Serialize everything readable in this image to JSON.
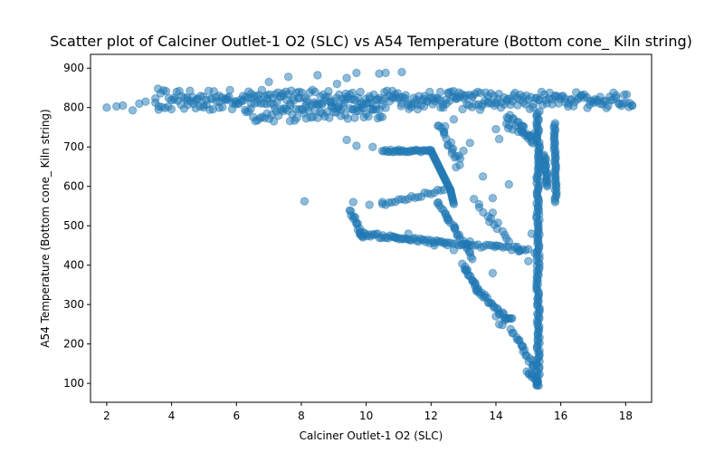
{
  "chart_data": {
    "type": "scatter",
    "title": "Scatter plot of Calciner Outlet-1 O2 (SLC) vs A54 Temperature (Bottom cone_ Kiln string)",
    "xlabel": "Calciner Outlet-1 O2 (SLC)",
    "ylabel": "A54 Temperature (Bottom cone_ Kiln string)",
    "xlim": [
      1.5,
      18.8
    ],
    "ylim": [
      52,
      935
    ],
    "xticks": [
      2,
      4,
      6,
      8,
      10,
      12,
      14,
      16,
      18
    ],
    "yticks": [
      100,
      200,
      300,
      400,
      500,
      600,
      700,
      800,
      900
    ],
    "grid": false,
    "legend": "none",
    "marker_color": "#1f77b4",
    "marker_alpha": 0.5,
    "segments": [
      {
        "from": [
          3.5,
          830
        ],
        "to": [
          18.2,
          820
        ],
        "count": 180,
        "spread": [
          0,
          18
        ]
      },
      {
        "from": [
          3.5,
          810
        ],
        "to": [
          18.2,
          815
        ],
        "count": 150,
        "spread": [
          0,
          18
        ]
      },
      {
        "from": [
          6.3,
          780
        ],
        "to": [
          10.5,
          790
        ],
        "count": 60,
        "spread": [
          0,
          18
        ]
      },
      {
        "from": [
          4.5,
          820
        ],
        "to": [
          14.0,
          815
        ],
        "count": 40,
        "spread": [
          0,
          22
        ]
      },
      {
        "from": [
          15.3,
          790
        ],
        "to": [
          15.3,
          95
        ],
        "count": 150,
        "spread": [
          0.05,
          0
        ]
      },
      {
        "from": [
          15.8,
          760
        ],
        "to": [
          15.85,
          560
        ],
        "count": 40,
        "spread": [
          0.03,
          0
        ]
      },
      {
        "from": [
          15.5,
          680
        ],
        "to": [
          15.6,
          600
        ],
        "count": 20,
        "spread": [
          0.03,
          0
        ]
      },
      {
        "from": [
          14.3,
          770
        ],
        "to": [
          15.2,
          720
        ],
        "count": 30,
        "spread": [
          0.1,
          15
        ]
      },
      {
        "from": [
          10.5,
          690
        ],
        "to": [
          12.0,
          690
        ],
        "count": 30,
        "spread": [
          0,
          3
        ]
      },
      {
        "from": [
          12.0,
          690
        ],
        "to": [
          12.6,
          590
        ],
        "count": 30,
        "spread": [
          0,
          0
        ]
      },
      {
        "from": [
          12.6,
          590
        ],
        "to": [
          12.7,
          555
        ],
        "count": 10,
        "spread": [
          0,
          0
        ]
      },
      {
        "from": [
          12.2,
          560
        ],
        "to": [
          13.3,
          420
        ],
        "count": 30,
        "spread": [
          0.05,
          5
        ]
      },
      {
        "from": [
          13.0,
          400
        ],
        "to": [
          13.5,
          330
        ],
        "count": 20,
        "spread": [
          0.05,
          5
        ]
      },
      {
        "from": [
          13.5,
          330
        ],
        "to": [
          14.3,
          265
        ],
        "count": 20,
        "spread": [
          0.05,
          5
        ]
      },
      {
        "from": [
          14.3,
          265
        ],
        "to": [
          14.5,
          265
        ],
        "count": 6,
        "spread": [
          0,
          0
        ]
      },
      {
        "from": [
          14.5,
          235
        ],
        "to": [
          15.2,
          140
        ],
        "count": 20,
        "spread": [
          0.05,
          5
        ]
      },
      {
        "from": [
          15.0,
          130
        ],
        "to": [
          15.3,
          95
        ],
        "count": 12,
        "spread": [
          0.05,
          5
        ]
      },
      {
        "from": [
          9.5,
          540
        ],
        "to": [
          9.9,
          470
        ],
        "count": 15,
        "spread": [
          0.05,
          5
        ]
      },
      {
        "from": [
          9.8,
          480
        ],
        "to": [
          12.5,
          455
        ],
        "count": 50,
        "spread": [
          0,
          5
        ]
      },
      {
        "from": [
          12.5,
          455
        ],
        "to": [
          15.0,
          440
        ],
        "count": 30,
        "spread": [
          0,
          5
        ]
      },
      {
        "from": [
          10.5,
          555
        ],
        "to": [
          12.4,
          590
        ],
        "count": 20,
        "spread": [
          0,
          5
        ]
      },
      {
        "from": [
          12.3,
          760
        ],
        "to": [
          12.9,
          650
        ],
        "count": 20,
        "spread": [
          0.1,
          10
        ]
      },
      {
        "from": [
          13.3,
          560
        ],
        "to": [
          14.7,
          440
        ],
        "count": 15,
        "spread": [
          0.1,
          10
        ]
      }
    ],
    "outliers": [
      [
        2.0,
        800
      ],
      [
        2.3,
        803
      ],
      [
        2.5,
        805
      ],
      [
        2.8,
        793
      ],
      [
        3.0,
        810
      ],
      [
        3.2,
        815
      ],
      [
        3.6,
        803
      ],
      [
        7.6,
        878
      ],
      [
        8.5,
        882
      ],
      [
        9.4,
        875
      ],
      [
        9.7,
        888
      ],
      [
        10.4,
        886
      ],
      [
        10.6,
        888
      ],
      [
        11.1,
        890
      ],
      [
        7.0,
        865
      ],
      [
        9.1,
        860
      ],
      [
        8.1,
        562
      ],
      [
        9.6,
        560
      ],
      [
        10.1,
        553
      ],
      [
        10.5,
        560
      ],
      [
        9.4,
        718
      ],
      [
        9.7,
        703
      ],
      [
        10.2,
        700
      ],
      [
        11.0,
        693
      ],
      [
        13.6,
        625
      ],
      [
        13.9,
        570
      ],
      [
        14.4,
        605
      ],
      [
        14.7,
        435
      ],
      [
        14.0,
        450
      ],
      [
        13.9,
        380
      ],
      [
        14.0,
        270
      ],
      [
        14.1,
        250
      ],
      [
        14.2,
        248
      ],
      [
        13.2,
        460
      ],
      [
        12.7,
        438
      ],
      [
        13.9,
        533
      ],
      [
        13.8,
        510
      ],
      [
        11.3,
        480
      ],
      [
        10.9,
        470
      ],
      [
        12.1,
        450
      ],
      [
        13.0,
        690
      ],
      [
        13.2,
        710
      ],
      [
        14.0,
        745
      ],
      [
        12.7,
        770
      ],
      [
        14.1,
        720
      ],
      [
        15.1,
        480
      ],
      [
        15.0,
        410
      ],
      [
        15.2,
        430
      ]
    ]
  }
}
